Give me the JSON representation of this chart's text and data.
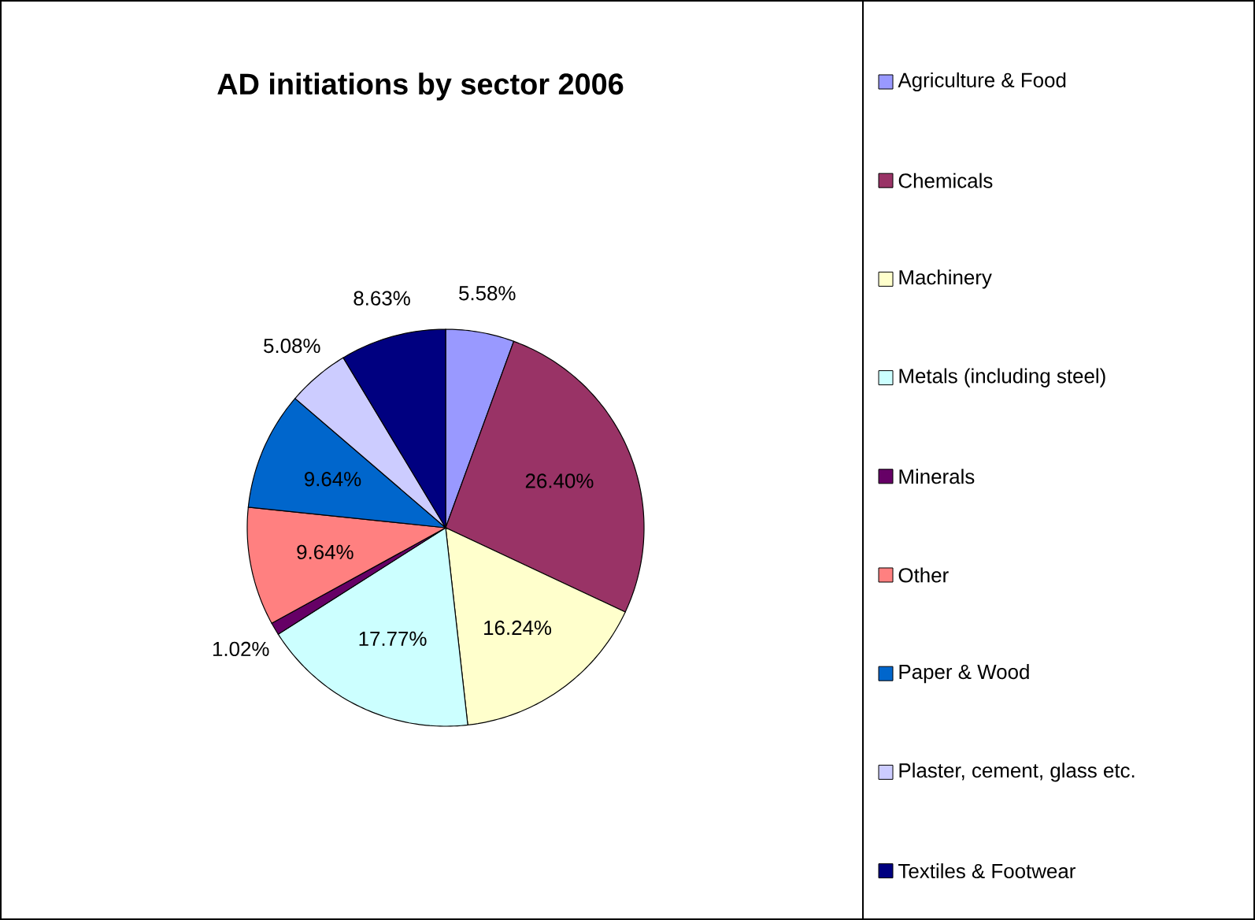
{
  "chart_data": {
    "type": "pie",
    "title": "AD initiations by sector 2006",
    "categories": [
      "Agriculture & Food",
      "Chemicals",
      "Machinery",
      "Metals (including steel)",
      "Minerals",
      "Other",
      "Paper & Wood",
      "Plaster, cement, glass etc.",
      "Textiles & Footwear"
    ],
    "values": [
      5.58,
      26.4,
      16.24,
      17.77,
      1.02,
      9.64,
      9.64,
      5.08,
      8.63
    ],
    "value_labels": [
      "5.58%",
      "26.40%",
      "16.24%",
      "17.77%",
      "1.02%",
      "9.64%",
      "9.64%",
      "5.08%",
      "8.63%"
    ],
    "colors": [
      "#9999ff",
      "#993366",
      "#ffffcc",
      "#ccffff",
      "#660066",
      "#ff8080",
      "#0066cc",
      "#ccccff",
      "#000080"
    ],
    "legend": "right"
  }
}
